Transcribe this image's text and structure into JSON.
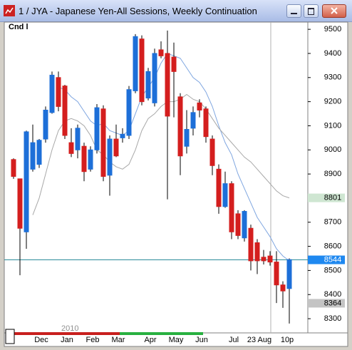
{
  "window_title": "1 / JYA - Japanese Yen-All Sessions, Weekly Continuation",
  "chart_data": {
    "type": "candlestick",
    "label": "Cnd l",
    "year_label": "2010",
    "categories": [
      null,
      null,
      null,
      null,
      "Dec",
      null,
      null,
      null,
      "Jan",
      null,
      null,
      null,
      "Feb",
      null,
      null,
      null,
      "Mar",
      null,
      null,
      null,
      null,
      "Apr",
      null,
      null,
      null,
      "May",
      null,
      null,
      null,
      "Jun",
      null,
      null,
      null,
      null,
      "Jul",
      null,
      null,
      null,
      "23 Aug",
      null,
      null,
      null,
      "10",
      "p"
    ],
    "open": [
      8960,
      8880,
      8660,
      8920,
      8940,
      9045,
      9155,
      9300,
      9265,
      9030,
      9000,
      9015,
      8920,
      9000,
      9170,
      8895,
      9045,
      9050,
      9060,
      9245,
      9460,
      9215,
      9195,
      9415,
      9400,
      9385,
      9220,
      9015,
      9090,
      9195,
      9170,
      9045,
      8920,
      8765,
      8860,
      8735,
      8635,
      8675,
      8615,
      8555,
      8560,
      8535,
      8440,
      8425
    ],
    "high": [
      8965,
      8880,
      9080,
      9105,
      9045,
      9180,
      9325,
      9325,
      9270,
      9090,
      9105,
      9030,
      9015,
      9190,
      9185,
      9060,
      9105,
      9090,
      9265,
      9480,
      9475,
      9340,
      9420,
      9450,
      9495,
      9445,
      9235,
      9165,
      9180,
      9210,
      9180,
      9060,
      8940,
      8910,
      8870,
      8750,
      8750,
      8690,
      8630,
      8585,
      8580,
      8580,
      8455,
      8550
    ],
    "low": [
      8880,
      8480,
      8590,
      8910,
      8925,
      9030,
      9150,
      9160,
      9045,
      8970,
      8965,
      8870,
      8910,
      8985,
      8870,
      8810,
      8970,
      9030,
      9045,
      9235,
      9185,
      9205,
      9180,
      9380,
      8795,
      9135,
      8895,
      8985,
      9060,
      9135,
      9030,
      8895,
      8735,
      8760,
      8630,
      8630,
      8620,
      8500,
      8485,
      8525,
      8520,
      8365,
      8345,
      8280
    ],
    "close": [
      8890,
      8675,
      9075,
      9030,
      9040,
      9165,
      9310,
      9180,
      9060,
      8985,
      9090,
      8910,
      9000,
      9175,
      8890,
      9045,
      8975,
      9065,
      9250,
      9470,
      9200,
      9325,
      9400,
      9390,
      9140,
      9325,
      8975,
      9085,
      9155,
      9165,
      9055,
      8935,
      8765,
      8860,
      8660,
      8645,
      8745,
      8540,
      8540,
      8540,
      8535,
      8440,
      8415,
      8545
    ],
    "up_color": "#1d6fd8",
    "down_color": "#d41e1e",
    "overlays": [
      {
        "color": "#7fa6e0",
        "values": [
          null,
          null,
          null,
          null,
          null,
          null,
          null,
          9260,
          9250,
          9220,
          9200,
          9160,
          9120,
          9100,
          9110,
          9080,
          9070,
          9060,
          9080,
          9150,
          9220,
          9260,
          9300,
          9360,
          9400,
          9390,
          9380,
          9340,
          9300,
          9280,
          9240,
          9180,
          9100,
          9030,
          8980,
          8900,
          8840,
          8780,
          8720,
          8680,
          8640,
          8590,
          8560,
          8540
        ]
      },
      {
        "color": "#a8a8a8",
        "values": [
          null,
          null,
          null,
          8730,
          8800,
          8900,
          9000,
          9080,
          9120,
          9130,
          9120,
          9100,
          9060,
          9000,
          8980,
          8950,
          8930,
          8920,
          8940,
          9000,
          9080,
          9130,
          9150,
          9180,
          9200,
          9200,
          9210,
          9230,
          9210,
          9200,
          9170,
          9130,
          9090,
          9060,
          9030,
          9000,
          8970,
          8950,
          8920,
          8890,
          8860,
          8830,
          8810,
          8801
        ]
      }
    ],
    "price_markers": [
      {
        "value": 8801,
        "color": "#cfe6d2",
        "text_color": "#000000",
        "line": false
      },
      {
        "value": 8544,
        "color": "#1e88f0",
        "text_color": "#ffffff",
        "line": true
      },
      {
        "value": 8364,
        "color": "#c4c4c4",
        "text_color": "#000000",
        "line": false
      }
    ],
    "ylim": [
      8247,
      9527
    ],
    "yticks": [
      8300,
      8400,
      8500,
      8600,
      8700,
      8800,
      8900,
      9000,
      9100,
      9200,
      9300,
      9400,
      9500
    ]
  }
}
